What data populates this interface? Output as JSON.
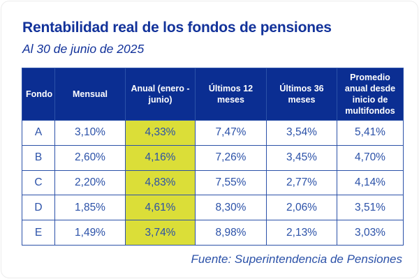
{
  "page": {
    "title": "Rentabilidad real de los fondos de pensiones",
    "subtitle": "Al 30 de junio de 2025",
    "source": "Fuente: Superintendencia de Pensiones"
  },
  "colors": {
    "navy_header": "#0b2e92",
    "title_blue": "#12329a",
    "data_blue": "#2b51a8",
    "border_blue": "#2b51a8",
    "highlight_yellow": "#dbde38"
  },
  "chart_data": {
    "type": "table",
    "title": "Rentabilidad real de los fondos de pensiones",
    "subtitle": "Al 30 de junio de 2025",
    "source": "Fuente: Superintendencia de Pensiones",
    "columns": [
      "Fondo",
      "Mensual",
      "Anual (enero - junio)",
      "Últimos 12 meses",
      "Últimos 36 meses",
      "Promedio anual desde inicio de multifondos"
    ],
    "highlight_col": 2,
    "rows": [
      {
        "fondo": "A",
        "values": [
          "3,10%",
          "4,33%",
          "7,47%",
          "3,54%",
          "5,41%"
        ]
      },
      {
        "fondo": "B",
        "values": [
          "2,60%",
          "4,16%",
          "7,26%",
          "3,45%",
          "4,70%"
        ]
      },
      {
        "fondo": "C",
        "values": [
          "2,20%",
          "4,83%",
          "7,55%",
          "2,77%",
          "4,14%"
        ]
      },
      {
        "fondo": "D",
        "values": [
          "1,85%",
          "4,61%",
          "8,30%",
          "2,06%",
          "3,51%"
        ]
      },
      {
        "fondo": "E",
        "values": [
          "1,49%",
          "3,74%",
          "8,98%",
          "2,13%",
          "3,03%"
        ]
      }
    ]
  }
}
